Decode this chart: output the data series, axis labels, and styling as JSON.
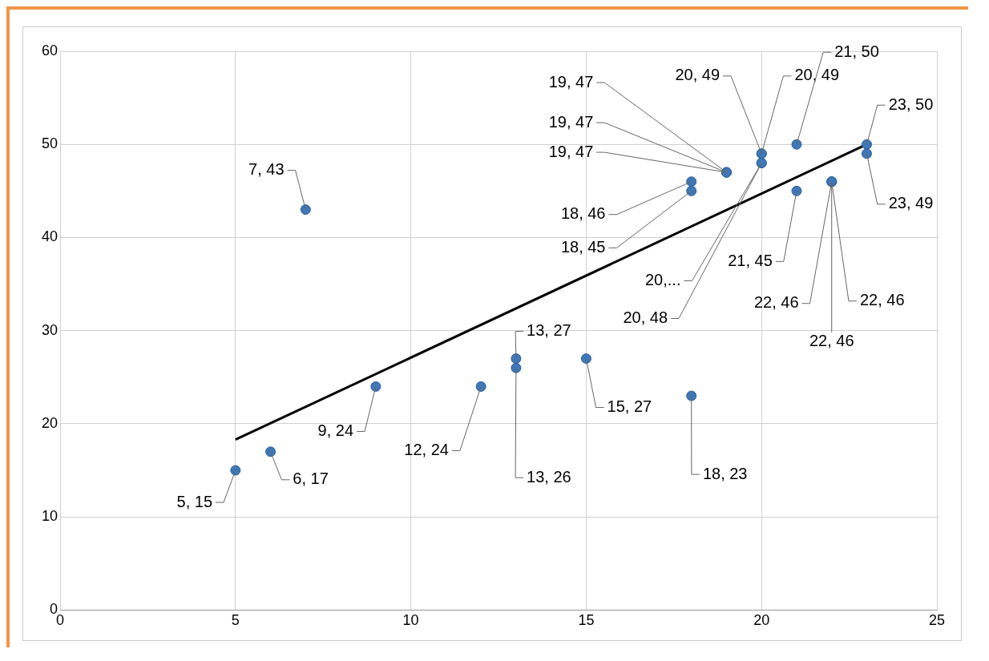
{
  "chart_data": {
    "type": "scatter",
    "xlim": [
      0,
      25
    ],
    "ylim": [
      0,
      60
    ],
    "xticks": [
      0,
      5,
      10,
      15,
      20,
      25
    ],
    "yticks": [
      0,
      10,
      20,
      30,
      40,
      50,
      60
    ],
    "grid": true,
    "legend": false,
    "marker": "circle",
    "series": [
      {
        "type": "scatter",
        "color": "#3f78b8",
        "x": [
          5,
          6,
          7,
          9,
          12,
          13,
          13,
          15,
          18,
          18,
          18,
          19,
          19,
          19,
          20,
          20,
          20,
          20,
          21,
          21,
          22,
          22,
          22,
          23,
          23
        ],
        "values": [
          15,
          17,
          43,
          24,
          24,
          27,
          26,
          27,
          23,
          46,
          45,
          47,
          47,
          47,
          49,
          49,
          48,
          48,
          50,
          45,
          46,
          46,
          46,
          50,
          49
        ],
        "value_labels": [
          "5, 15",
          "6, 17",
          "7, 43",
          "9, 24",
          "12, 24",
          "13, 27",
          "13, 26",
          "15, 27",
          "18, 23",
          "18, 46",
          "18, 45",
          "19, 47",
          "19, 47",
          "19, 47",
          "20, 49",
          "20, 49",
          "20,...",
          "20, 48",
          "21, 50",
          "21, 45",
          "22, 46",
          "22, 46",
          "22, 46",
          "23, 50",
          "23, 49"
        ]
      },
      {
        "type": "line",
        "color": "#000000",
        "marker": "none",
        "x": [
          5,
          23
        ],
        "values": [
          18.3,
          50
        ]
      }
    ]
  }
}
